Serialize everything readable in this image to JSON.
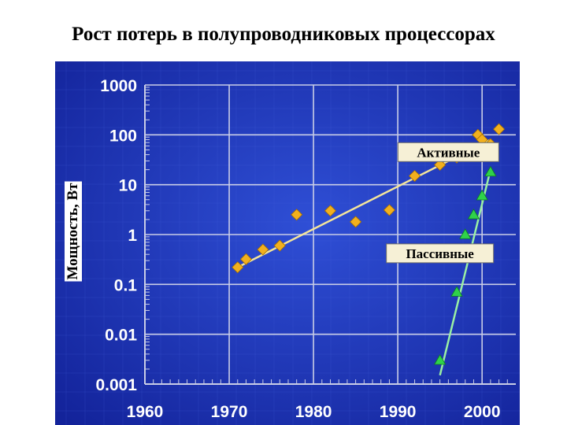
{
  "title": "Рост потерь в полупроводниковых процессорах",
  "chart_data": {
    "type": "scatter",
    "title": "Рост потерь в полупроводниковых процессорах",
    "xlabel": "",
    "ylabel": "Мощность, Вт",
    "xlim": [
      1960,
      2004
    ],
    "ylim": [
      0.001,
      1000
    ],
    "yscale": "log",
    "grid": true,
    "x_ticks": [
      "1960",
      "1970",
      "1980",
      "1990",
      "2000"
    ],
    "y_ticks": [
      "1000",
      "100",
      "10",
      "1",
      "0.1",
      "0.01",
      "0.001"
    ],
    "series": [
      {
        "name": "Активные",
        "marker": "diamond",
        "color": "#f2b01e",
        "points": [
          {
            "x": 1971,
            "y": 0.22
          },
          {
            "x": 1972,
            "y": 0.32
          },
          {
            "x": 1974,
            "y": 0.5
          },
          {
            "x": 1976,
            "y": 0.6
          },
          {
            "x": 1978,
            "y": 2.5
          },
          {
            "x": 1982,
            "y": 3.0
          },
          {
            "x": 1985,
            "y": 1.8
          },
          {
            "x": 1989,
            "y": 3.1
          },
          {
            "x": 1992,
            "y": 15
          },
          {
            "x": 1995,
            "y": 25
          },
          {
            "x": 1997,
            "y": 35
          },
          {
            "x": 1999.5,
            "y": 100
          },
          {
            "x": 2000,
            "y": 80
          },
          {
            "x": 2001,
            "y": 65
          },
          {
            "x": 2002,
            "y": 130
          }
        ],
        "trend": [
          [
            1971,
            0.22
          ],
          [
            2001,
            80
          ]
        ]
      },
      {
        "name": "Пассивные",
        "marker": "triangle",
        "color": "#2fd24a",
        "points": [
          {
            "x": 1995,
            "y": 0.003
          },
          {
            "x": 1997,
            "y": 0.07
          },
          {
            "x": 1998,
            "y": 1.0
          },
          {
            "x": 1999,
            "y": 2.5
          },
          {
            "x": 2000,
            "y": 6.0
          },
          {
            "x": 2001,
            "y": 18
          }
        ],
        "trend": [
          [
            1995,
            0.0015
          ],
          [
            2001,
            20
          ]
        ]
      }
    ],
    "annotations": [
      {
        "text": "Активные",
        "x": 1996,
        "y": 45
      },
      {
        "text": "Пассивные",
        "x": 1995,
        "y": 0.42
      }
    ],
    "colors": {
      "background": "#1f36b8",
      "grid": "#c9cde6",
      "tick_text": "#ffffff",
      "trend_active": "#f4e59b",
      "trend_passive": "#9af0a4",
      "label_box": "#f6f0d6"
    }
  }
}
